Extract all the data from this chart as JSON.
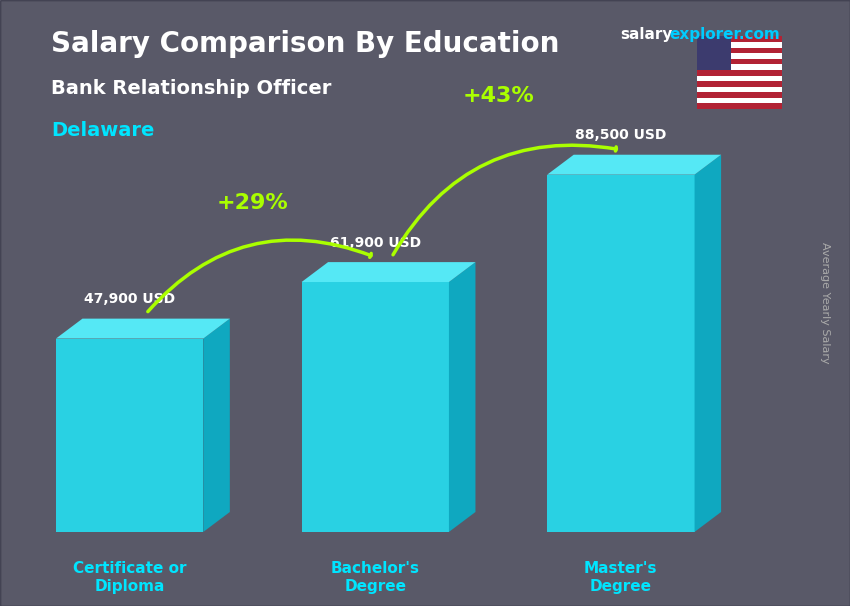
{
  "title": "Salary Comparison By Education",
  "subtitle": "Bank Relationship Officer",
  "location": "Delaware",
  "categories": [
    "Certificate or\nDiploma",
    "Bachelor's\nDegree",
    "Master's\nDegree"
  ],
  "values": [
    47900,
    61900,
    88500
  ],
  "value_labels": [
    "47,900 USD",
    "61,900 USD",
    "88,500 USD"
  ],
  "pct_labels": [
    "+29%",
    "+43%"
  ],
  "bar_color_top": "#29d1e3",
  "bar_color_bottom": "#1ab8d4",
  "bar_color_side": "#0e9ab5",
  "background_color": "#1a1a2e",
  "title_color": "#ffffff",
  "subtitle_color": "#ffffff",
  "location_color": "#00e5ff",
  "value_label_color": "#ffffff",
  "pct_color": "#aaff00",
  "category_color": "#00e5ff",
  "ylabel_text": "Average Yearly Salary",
  "site_text": "salaryexplorer.com",
  "site_salary_color": "#ffffff",
  "site_explorer_color": "#00e5ff"
}
